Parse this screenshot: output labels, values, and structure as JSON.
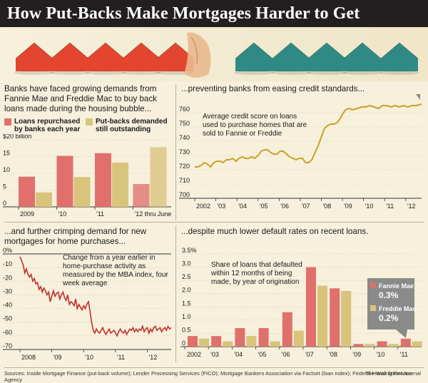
{
  "title": "How Put-Backs Make Mortgages Harder to Get",
  "colors": {
    "red": "#e0706b",
    "tan": "#d8c47a",
    "gold_line": "#c9a227",
    "dark_red_line": "#c0302b",
    "house_red": "#e4452f",
    "house_teal": "#2f8a86"
  },
  "icons": [
    "red-house-icon",
    "hand-icon",
    "teal-house-icon"
  ],
  "panels": {
    "top_left": {
      "intro": "Banks have faced growing demands from Fannie Mae and Freddie Mac to buy back loans made during the housing bubble...",
      "legend": [
        "Loans repurchased by banks each year",
        "Put-backs demanded still outstanding"
      ]
    },
    "top_right": {
      "intro": "...preventing banks from easing credit standards...",
      "note": "Average credit score on loans used to purchase homes that are sold to Fannie or Freddie",
      "callout": "766"
    },
    "bottom_left": {
      "intro": "...and further crimping demand for new mortgages for home purchases...",
      "note": "Change from a year earlier in home-purchase activity as measured by the MBA index, four week average"
    },
    "bottom_right": {
      "intro": "...despite much lower default rates on recent loans.",
      "note": "Share of loans that defaulted within 12 months of being made, by year of origination",
      "callouts": [
        {
          "name": "Fannie Mae",
          "value": "0.3%"
        },
        {
          "name": "Freddie Mac",
          "value": "0.2%"
        }
      ]
    }
  },
  "source": "Sources: Inside Mortgage Finance (put-back volume); Lender Processing Services (FICO); Mortgage Bankers Association via Factset (loan index); Federal Housing Finance Agency",
  "publisher": "The Wall Street Journal",
  "chart_data": [
    {
      "type": "bar",
      "categories": [
        "2009",
        "'10",
        "'11",
        "'12 thru June"
      ],
      "series": [
        {
          "name": "Loans repurchased by banks each year",
          "values": [
            9.0,
            15.2,
            16.0,
            6.8
          ]
        },
        {
          "name": "Put-backs demanded still outstanding",
          "values": [
            4.3,
            8.9,
            13.2,
            17.8
          ]
        }
      ],
      "ylim": [
        0,
        20
      ],
      "yticks": [
        "$20 billion",
        "15",
        "10",
        "5",
        "0"
      ],
      "yticks_values": [
        20,
        15,
        10,
        5,
        0
      ]
    },
    {
      "type": "line",
      "x_labels": [
        "2002",
        "'03",
        "'04",
        "'05",
        "'06",
        "'07",
        "'08",
        "'09",
        "'10",
        "'11",
        "'12"
      ],
      "x_range": [
        2002,
        2012.75
      ],
      "ylim": [
        700,
        770
      ],
      "yticks": [
        700,
        710,
        720,
        730,
        740,
        750,
        760
      ],
      "points": [
        [
          2002.0,
          722
        ],
        [
          2002.15,
          722
        ],
        [
          2002.3,
          723
        ],
        [
          2002.45,
          725
        ],
        [
          2002.6,
          724
        ],
        [
          2002.75,
          722
        ],
        [
          2002.9,
          725
        ],
        [
          2003.05,
          726
        ],
        [
          2003.2,
          726
        ],
        [
          2003.35,
          725
        ],
        [
          2003.5,
          727
        ],
        [
          2003.65,
          727
        ],
        [
          2003.8,
          728
        ],
        [
          2003.95,
          726
        ],
        [
          2004.1,
          728
        ],
        [
          2004.25,
          729
        ],
        [
          2004.4,
          728
        ],
        [
          2004.55,
          728
        ],
        [
          2004.7,
          729
        ],
        [
          2004.85,
          728
        ],
        [
          2005.0,
          730
        ],
        [
          2005.15,
          733
        ],
        [
          2005.3,
          734
        ],
        [
          2005.45,
          734
        ],
        [
          2005.6,
          732
        ],
        [
          2005.75,
          731
        ],
        [
          2005.9,
          731
        ],
        [
          2006.05,
          733
        ],
        [
          2006.2,
          733
        ],
        [
          2006.35,
          731
        ],
        [
          2006.5,
          729
        ],
        [
          2006.65,
          728
        ],
        [
          2006.8,
          727
        ],
        [
          2006.95,
          728
        ],
        [
          2007.1,
          728
        ],
        [
          2007.25,
          725
        ],
        [
          2007.4,
          725
        ],
        [
          2007.55,
          727
        ],
        [
          2007.7,
          732
        ],
        [
          2007.85,
          737
        ],
        [
          2008.0,
          743
        ],
        [
          2008.15,
          749
        ],
        [
          2008.3,
          751
        ],
        [
          2008.45,
          752
        ],
        [
          2008.6,
          752
        ],
        [
          2008.75,
          753
        ],
        [
          2008.9,
          756
        ],
        [
          2009.0,
          759
        ],
        [
          2009.15,
          762
        ],
        [
          2009.3,
          763
        ],
        [
          2009.5,
          762
        ],
        [
          2009.7,
          763
        ],
        [
          2009.9,
          764
        ],
        [
          2010.1,
          764
        ],
        [
          2010.3,
          765
        ],
        [
          2010.5,
          764
        ],
        [
          2010.7,
          763
        ],
        [
          2010.9,
          765
        ],
        [
          2011.1,
          765
        ],
        [
          2011.3,
          764
        ],
        [
          2011.5,
          765
        ],
        [
          2011.7,
          764
        ],
        [
          2011.9,
          765
        ],
        [
          2012.1,
          764
        ],
        [
          2012.3,
          765
        ],
        [
          2012.5,
          765
        ],
        [
          2012.75,
          766
        ]
      ]
    },
    {
      "type": "line",
      "x_labels": [
        "2008",
        "'09",
        "'10",
        "'11",
        "'12"
      ],
      "x_range": [
        2008,
        2012.75
      ],
      "ylim": [
        -70,
        0
      ],
      "yticks": [
        0,
        -10,
        -20,
        -30,
        -40,
        -50,
        -60,
        -70
      ],
      "yticks_labels": [
        "0%",
        "-10",
        "-20",
        "-30",
        "-40",
        "-50",
        "-60",
        "-70"
      ],
      "points": [
        [
          2008.0,
          -2
        ],
        [
          2008.05,
          -5
        ],
        [
          2008.1,
          -8
        ],
        [
          2008.15,
          -14
        ],
        [
          2008.2,
          -11
        ],
        [
          2008.25,
          -15
        ],
        [
          2008.3,
          -17
        ],
        [
          2008.35,
          -15
        ],
        [
          2008.4,
          -20
        ],
        [
          2008.45,
          -18
        ],
        [
          2008.5,
          -22
        ],
        [
          2008.55,
          -21
        ],
        [
          2008.6,
          -26
        ],
        [
          2008.65,
          -24
        ],
        [
          2008.7,
          -28
        ],
        [
          2008.75,
          -25
        ],
        [
          2008.8,
          -27
        ],
        [
          2008.85,
          -30
        ],
        [
          2008.9,
          -28
        ],
        [
          2008.95,
          -35
        ],
        [
          2009.0,
          -31
        ],
        [
          2009.05,
          -27
        ],
        [
          2009.1,
          -31
        ],
        [
          2009.15,
          -29
        ],
        [
          2009.2,
          -28
        ],
        [
          2009.25,
          -33
        ],
        [
          2009.3,
          -30
        ],
        [
          2009.35,
          -28
        ],
        [
          2009.4,
          -32
        ],
        [
          2009.45,
          -34
        ],
        [
          2009.5,
          -30
        ],
        [
          2009.55,
          -37
        ],
        [
          2009.6,
          -35
        ],
        [
          2009.65,
          -36
        ],
        [
          2009.7,
          -38
        ],
        [
          2009.75,
          -33
        ],
        [
          2009.8,
          -40
        ],
        [
          2009.85,
          -37
        ],
        [
          2009.9,
          -39
        ],
        [
          2009.95,
          -41
        ],
        [
          2010.0,
          -38
        ],
        [
          2010.05,
          -40
        ],
        [
          2010.1,
          -37
        ],
        [
          2010.15,
          -35
        ],
        [
          2010.2,
          -42
        ],
        [
          2010.25,
          -50
        ],
        [
          2010.3,
          -56
        ],
        [
          2010.35,
          -58
        ],
        [
          2010.4,
          -55
        ],
        [
          2010.45,
          -57
        ],
        [
          2010.5,
          -58
        ],
        [
          2010.55,
          -56
        ],
        [
          2010.6,
          -54
        ],
        [
          2010.65,
          -57
        ],
        [
          2010.7,
          -59
        ],
        [
          2010.75,
          -57
        ],
        [
          2010.8,
          -55
        ],
        [
          2010.85,
          -58
        ],
        [
          2010.9,
          -57
        ],
        [
          2010.95,
          -56
        ],
        [
          2011.0,
          -58
        ],
        [
          2011.05,
          -60
        ],
        [
          2011.1,
          -57
        ],
        [
          2011.15,
          -55
        ],
        [
          2011.2,
          -57
        ],
        [
          2011.25,
          -58
        ],
        [
          2011.3,
          -56
        ],
        [
          2011.35,
          -59
        ],
        [
          2011.4,
          -57
        ],
        [
          2011.45,
          -55
        ],
        [
          2011.5,
          -56
        ],
        [
          2011.55,
          -54
        ],
        [
          2011.6,
          -57
        ],
        [
          2011.65,
          -55
        ],
        [
          2011.7,
          -57
        ],
        [
          2011.75,
          -55
        ],
        [
          2011.8,
          -56
        ],
        [
          2011.85,
          -53
        ],
        [
          2011.9,
          -57
        ],
        [
          2011.95,
          -55
        ],
        [
          2012.0,
          -54
        ],
        [
          2012.05,
          -58
        ],
        [
          2012.1,
          -55
        ],
        [
          2012.15,
          -57
        ],
        [
          2012.2,
          -54
        ],
        [
          2012.25,
          -53
        ],
        [
          2012.3,
          -56
        ],
        [
          2012.35,
          -55
        ],
        [
          2012.4,
          -54
        ],
        [
          2012.45,
          -57
        ],
        [
          2012.5,
          -55
        ],
        [
          2012.55,
          -54
        ],
        [
          2012.6,
          -56
        ],
        [
          2012.65,
          -53
        ],
        [
          2012.7,
          -55
        ],
        [
          2012.75,
          -54
        ]
      ]
    },
    {
      "type": "bar",
      "categories": [
        "2002",
        "'03",
        "'04",
        "'05",
        "'06",
        "'07",
        "'08",
        "'09",
        "'10",
        "'11"
      ],
      "series": [
        {
          "name": "Fannie Mae",
          "values": [
            0.4,
            0.4,
            0.7,
            0.7,
            1.3,
            3.0,
            2.2,
            0.1,
            0.2,
            0.3
          ]
        },
        {
          "name": "Freddie Mac",
          "values": [
            0.3,
            0.2,
            0.4,
            0.2,
            0.6,
            2.3,
            2.1,
            0.1,
            0.1,
            0.2
          ]
        }
      ],
      "ylim": [
        0,
        3.5
      ],
      "yticks": [
        3.5,
        3.0,
        2.5,
        2.0,
        1.5,
        1.0,
        0.5,
        0
      ],
      "yticks_labels": [
        "3.5%",
        "3.0",
        "2.5",
        "2.0",
        "1.5",
        "1.0",
        "0.5",
        "0"
      ],
      "xtick_labels": [
        "2002",
        "'03",
        "'04",
        "'05",
        "'06",
        "'07",
        "'08",
        "'09",
        "'10",
        "'11"
      ]
    }
  ]
}
